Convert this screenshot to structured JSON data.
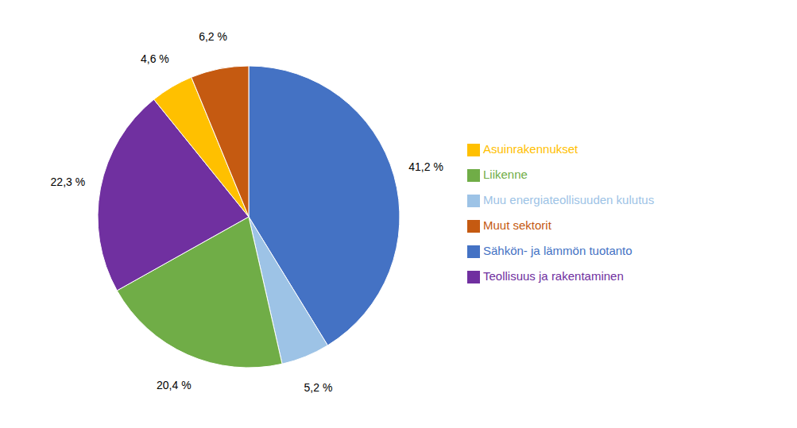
{
  "chart_data": {
    "type": "pie",
    "categories": [
      "Sähkön- ja lämmön tuotanto",
      "Muu energiateollisuuden kulutus",
      "Liikenne",
      "Teollisuus ja rakentaminen",
      "Asuinrakennukset",
      "Muut sektorit"
    ],
    "values": [
      41.2,
      5.2,
      20.4,
      22.3,
      4.6,
      6.2
    ],
    "value_labels": [
      "41,2 %",
      "5,2 %",
      "20,4 %",
      "22,3 %",
      "4,6 %",
      "6,2 %"
    ],
    "colors": [
      "#4472C4",
      "#9DC3E6",
      "#70AD47",
      "#7030A0",
      "#FFC000",
      "#C55A11"
    ],
    "data_labels": true,
    "legend": "right"
  }
}
